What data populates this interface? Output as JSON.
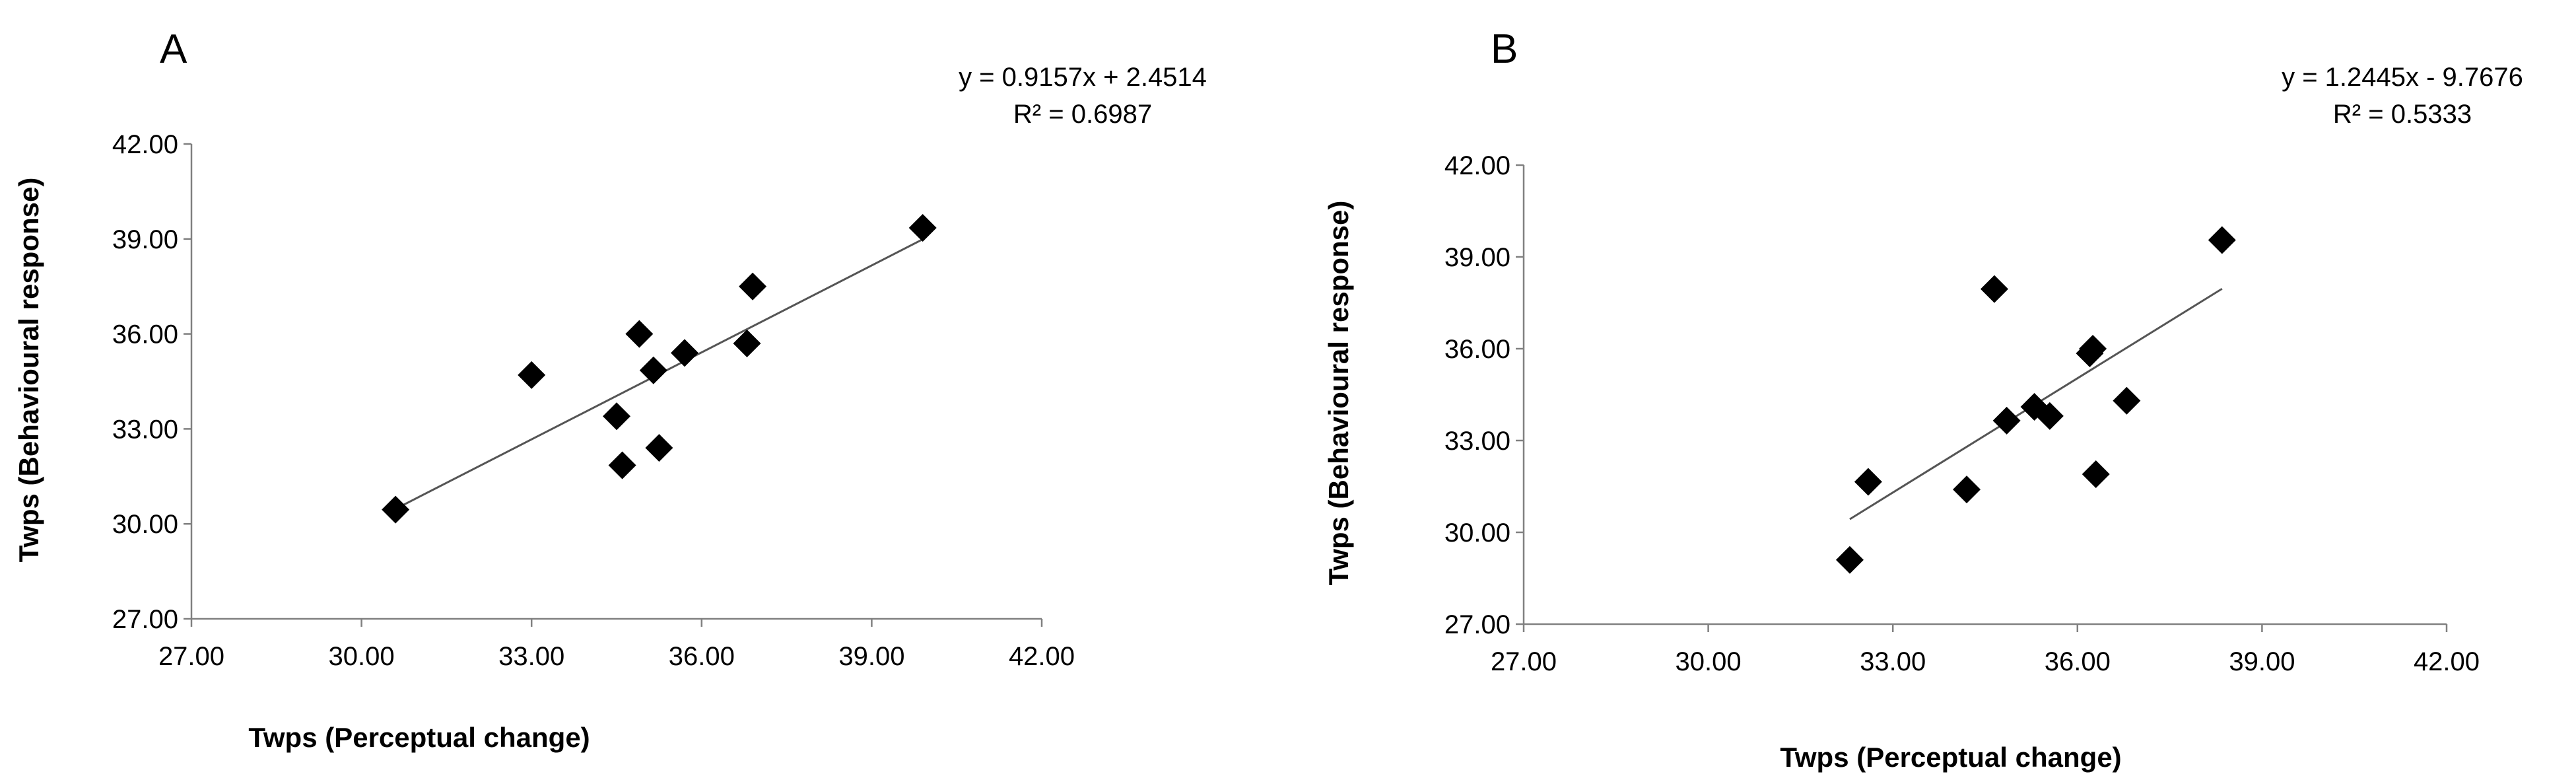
{
  "chart_data": [
    {
      "type": "scatter",
      "panel_label": "A",
      "xlabel": "Twps (Perceptual change)",
      "ylabel": "Twps (Behavioural response)",
      "xlim": [
        27,
        42
      ],
      "ylim": [
        27,
        42
      ],
      "x_ticks": [
        "27.00",
        "30.00",
        "33.00",
        "36.00",
        "39.00",
        "42.00"
      ],
      "y_ticks": [
        "27.00",
        "30.00",
        "33.00",
        "36.00",
        "39.00",
        "42.00"
      ],
      "grid": false,
      "legend": "none",
      "points": [
        {
          "x": 30.6,
          "y": 30.45
        },
        {
          "x": 33.0,
          "y": 34.7
        },
        {
          "x": 34.5,
          "y": 33.4
        },
        {
          "x": 34.6,
          "y": 31.85
        },
        {
          "x": 34.9,
          "y": 36.0
        },
        {
          "x": 35.15,
          "y": 34.85
        },
        {
          "x": 35.25,
          "y": 32.4
        },
        {
          "x": 35.7,
          "y": 35.4
        },
        {
          "x": 36.8,
          "y": 35.7
        },
        {
          "x": 36.9,
          "y": 37.5
        },
        {
          "x": 39.9,
          "y": 39.35
        }
      ],
      "trendline": {
        "slope": 0.9157,
        "intercept": 2.4514,
        "x_range": [
          30.6,
          39.9
        ],
        "equation": "y = 0.9157x + 2.4514",
        "r_squared_label": "R² = 0.6987"
      }
    },
    {
      "type": "scatter",
      "panel_label": "B",
      "xlabel": "Twps (Perceptual change)",
      "ylabel": "Twps (Behavioural response)",
      "xlim": [
        27,
        42
      ],
      "ylim": [
        27,
        42
      ],
      "x_ticks": [
        "27.00",
        "30.00",
        "33.00",
        "36.00",
        "39.00",
        "42.00"
      ],
      "y_ticks": [
        "27.00",
        "30.00",
        "33.00",
        "36.00",
        "39.00",
        "42.00"
      ],
      "grid": false,
      "legend": "none",
      "points": [
        {
          "x": 32.3,
          "y": 29.1
        },
        {
          "x": 32.6,
          "y": 31.65
        },
        {
          "x": 34.2,
          "y": 31.4
        },
        {
          "x": 34.65,
          "y": 37.95
        },
        {
          "x": 34.85,
          "y": 33.65
        },
        {
          "x": 35.3,
          "y": 34.1
        },
        {
          "x": 35.55,
          "y": 33.8
        },
        {
          "x": 36.2,
          "y": 35.85
        },
        {
          "x": 36.25,
          "y": 36.0
        },
        {
          "x": 36.3,
          "y": 31.9
        },
        {
          "x": 36.8,
          "y": 34.3
        },
        {
          "x": 38.35,
          "y": 39.55
        }
      ],
      "trendline": {
        "slope": 1.2445,
        "intercept": -9.7676,
        "x_range": [
          32.3,
          38.35
        ],
        "equation": "y = 1.2445x - 9.7676",
        "r_squared_label": "R² = 0.5333"
      }
    }
  ]
}
